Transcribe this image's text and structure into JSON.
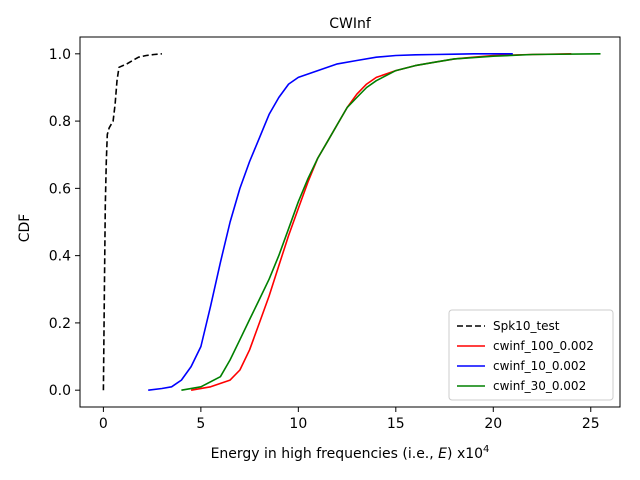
{
  "chart_data": {
    "type": "line",
    "title": "CWInf",
    "xlabel": "Energy in high frequencies (i.e., E) x10^4",
    "xlabel_parts": {
      "prefix": "Energy in high frequencies (i.e., ",
      "var": "E",
      "suffix": ") x10",
      "exp": "4"
    },
    "ylabel": "CDF",
    "xlim": [
      -1.2,
      26.5
    ],
    "ylim": [
      -0.05,
      1.05
    ],
    "xticks": [
      0,
      5,
      10,
      15,
      20,
      25
    ],
    "yticks": [
      0.0,
      0.2,
      0.4,
      0.6,
      0.8,
      1.0
    ],
    "ytick_labels": [
      "0.0",
      "0.2",
      "0.4",
      "0.6",
      "0.8",
      "1.0"
    ],
    "grid": false,
    "legend": "lower-right",
    "series": [
      {
        "name": "Spk10_test",
        "color": "#000000",
        "dash": "dashed",
        "x": [
          0.0,
          0.05,
          0.1,
          0.15,
          0.2,
          0.3,
          0.5,
          0.6,
          0.7,
          0.8,
          1.2,
          1.5,
          1.8,
          2.2,
          2.6,
          3.0
        ],
        "y": [
          0.0,
          0.3,
          0.55,
          0.68,
          0.76,
          0.78,
          0.8,
          0.85,
          0.92,
          0.96,
          0.97,
          0.98,
          0.99,
          0.995,
          0.998,
          1.0
        ]
      },
      {
        "name": "cwinf_100_0.002",
        "color": "#ff0000",
        "dash": "solid",
        "x": [
          4.5,
          5.5,
          6.5,
          7.0,
          7.5,
          8.0,
          8.5,
          9.0,
          9.5,
          10.0,
          10.5,
          11.0,
          11.5,
          12.0,
          12.5,
          13.0,
          13.5,
          14.0,
          15.0,
          16.0,
          17.0,
          18.0,
          19.0,
          20.0,
          22.0,
          24.0
        ],
        "y": [
          0.0,
          0.01,
          0.03,
          0.06,
          0.12,
          0.2,
          0.28,
          0.37,
          0.46,
          0.54,
          0.62,
          0.69,
          0.74,
          0.79,
          0.84,
          0.88,
          0.91,
          0.93,
          0.95,
          0.965,
          0.975,
          0.985,
          0.99,
          0.995,
          0.998,
          1.0
        ]
      },
      {
        "name": "cwinf_10_0.002",
        "color": "#0000ff",
        "dash": "solid",
        "x": [
          2.3,
          3.0,
          3.5,
          4.0,
          4.5,
          5.0,
          5.5,
          6.0,
          6.5,
          7.0,
          7.5,
          8.0,
          8.5,
          9.0,
          9.5,
          10.0,
          11.0,
          12.0,
          13.0,
          14.0,
          15.0,
          16.0,
          17.0,
          18.0,
          19.0,
          21.0
        ],
        "y": [
          0.0,
          0.005,
          0.01,
          0.03,
          0.07,
          0.13,
          0.25,
          0.38,
          0.5,
          0.6,
          0.68,
          0.75,
          0.82,
          0.87,
          0.91,
          0.93,
          0.95,
          0.97,
          0.98,
          0.99,
          0.995,
          0.997,
          0.998,
          0.999,
          1.0,
          1.0
        ]
      },
      {
        "name": "cwinf_30_0.002",
        "color": "#008000",
        "dash": "solid",
        "x": [
          4.0,
          5.0,
          6.0,
          6.5,
          7.0,
          7.5,
          8.0,
          8.5,
          9.0,
          9.5,
          10.0,
          10.5,
          11.0,
          11.5,
          12.0,
          12.5,
          13.0,
          13.5,
          14.0,
          15.0,
          16.0,
          17.0,
          18.0,
          20.0,
          22.0,
          25.5
        ],
        "y": [
          0.0,
          0.01,
          0.04,
          0.09,
          0.15,
          0.21,
          0.27,
          0.33,
          0.4,
          0.48,
          0.56,
          0.63,
          0.69,
          0.74,
          0.79,
          0.84,
          0.87,
          0.9,
          0.92,
          0.95,
          0.965,
          0.975,
          0.985,
          0.993,
          0.998,
          1.0
        ]
      }
    ]
  }
}
